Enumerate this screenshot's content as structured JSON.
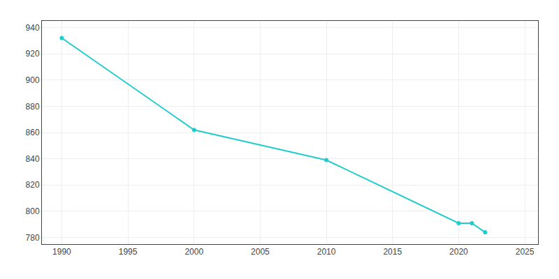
{
  "chart_data": {
    "type": "line",
    "x": [
      1990,
      2000,
      2010,
      2020,
      2021,
      2022
    ],
    "values": [
      932,
      862,
      839,
      791,
      791,
      784
    ],
    "color": "#22CCCC",
    "marker": "circle",
    "xlim": [
      1988.5,
      2026
    ],
    "ylim": [
      775,
      945
    ],
    "xticks": [
      1990,
      1995,
      2000,
      2005,
      2010,
      2015,
      2020,
      2025
    ],
    "yticks": [
      780,
      800,
      820,
      840,
      860,
      880,
      900,
      920,
      940
    ],
    "grid": true
  }
}
